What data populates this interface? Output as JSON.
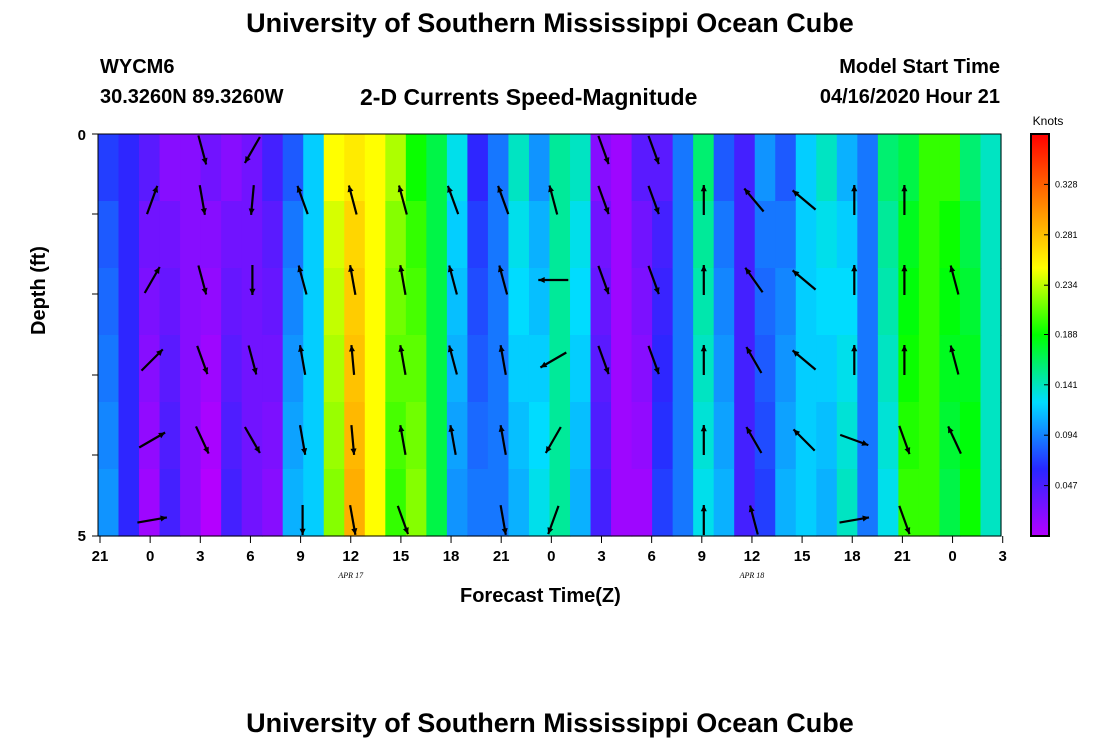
{
  "header": {
    "title_top": "University of Southern Mississippi Ocean Cube",
    "title_bottom": "University of Southern Mississippi Ocean Cube",
    "station": "WYCM6",
    "coords": "30.3260N 89.3260W",
    "subtitle": "2-D Currents Speed-Magnitude",
    "model_start_label": "Model Start Time",
    "model_start_value": "04/16/2020 Hour 21"
  },
  "chart_data": {
    "type": "heatmap",
    "title": "2-D Currents Speed-Magnitude",
    "xlabel": "Forecast Time(Z)",
    "ylabel": "Depth (ft)",
    "x_tick_labels": [
      "21",
      "0",
      "3",
      "6",
      "9",
      "12",
      "15",
      "18",
      "21",
      "0",
      "3",
      "6",
      "9",
      "12",
      "15",
      "18",
      "21",
      "0",
      "3"
    ],
    "date_labels": [
      {
        "text": "APR 17",
        "at_tick": 5
      },
      {
        "text": "APR 18",
        "at_tick": 13
      }
    ],
    "y_tick_labels": [
      "0",
      "5"
    ],
    "ylim": [
      0,
      5
    ],
    "colorbar": {
      "unit": "Knots",
      "tick_labels": [
        "0.328",
        "0.281",
        "0.234",
        "0.188",
        "0.141",
        "0.094",
        "0.047"
      ],
      "tick_values": [
        0.328,
        0.281,
        0.234,
        0.188,
        0.141,
        0.094,
        0.047
      ],
      "range": [
        0,
        0.375
      ],
      "colors": [
        "#b400ff",
        "#2828ff",
        "#00dcff",
        "#00ff00",
        "#ffff00",
        "#ff8000",
        "#ff0000"
      ]
    },
    "column_speeds": [
      0.08,
      0.06,
      0.03,
      0.03,
      0.02,
      0.02,
      0.03,
      0.03,
      0.04,
      0.09,
      0.12,
      0.24,
      0.27,
      0.25,
      0.22,
      0.2,
      0.17,
      0.12,
      0.07,
      0.09,
      0.13,
      0.11,
      0.15,
      0.13,
      0.03,
      0.01,
      0.03,
      0.05,
      0.09,
      0.15,
      0.09,
      0.05,
      0.09,
      0.09,
      0.12,
      0.13,
      0.12,
      0.09,
      0.15,
      0.18,
      0.2,
      0.19,
      0.17,
      0.14
    ],
    "row_offsets": [
      0.01,
      0.0,
      -0.005,
      -0.01,
      -0.015,
      -0.02
    ],
    "vectors": {
      "rows": [
        0,
        1,
        2,
        3,
        4,
        5
      ],
      "cols": [
        {
          "tick": 0,
          "angles": [
            null,
            null,
            null,
            null,
            null,
            null
          ]
        },
        {
          "tick": 1,
          "angles": [
            null,
            20,
            30,
            45,
            60,
            80
          ]
        },
        {
          "tick": 2,
          "angles": [
            165,
            170,
            165,
            160,
            155,
            null
          ]
        },
        {
          "tick": 3,
          "angles": [
            210,
            185,
            180,
            165,
            150,
            null
          ]
        },
        {
          "tick": 4,
          "angles": [
            null,
            -20,
            -15,
            -10,
            170,
            180
          ]
        },
        {
          "tick": 5,
          "angles": [
            null,
            -15,
            -10,
            -5,
            175,
            170
          ]
        },
        {
          "tick": 6,
          "angles": [
            null,
            -15,
            -10,
            -10,
            -10,
            160
          ]
        },
        {
          "tick": 7,
          "angles": [
            null,
            -20,
            -15,
            -15,
            -10,
            null
          ]
        },
        {
          "tick": 8,
          "angles": [
            null,
            -20,
            -15,
            -10,
            -10,
            170
          ]
        },
        {
          "tick": 9,
          "angles": [
            null,
            -15,
            -90,
            -120,
            210,
            200
          ]
        },
        {
          "tick": 10,
          "angles": [
            160,
            160,
            160,
            160,
            null,
            null
          ]
        },
        {
          "tick": 11,
          "angles": [
            160,
            160,
            160,
            160,
            null,
            null
          ]
        },
        {
          "tick": 12,
          "angles": [
            null,
            0,
            0,
            0,
            0,
            0
          ]
        },
        {
          "tick": 13,
          "angles": [
            null,
            -40,
            -35,
            -30,
            -30,
            -15
          ]
        },
        {
          "tick": 14,
          "angles": [
            null,
            -50,
            -50,
            -50,
            -45,
            null
          ]
        },
        {
          "tick": 15,
          "angles": [
            null,
            0,
            0,
            0,
            110,
            80
          ]
        },
        {
          "tick": 16,
          "angles": [
            null,
            0,
            0,
            0,
            160,
            160
          ]
        },
        {
          "tick": 17,
          "angles": [
            null,
            null,
            -15,
            -15,
            -25,
            null
          ]
        }
      ]
    }
  }
}
